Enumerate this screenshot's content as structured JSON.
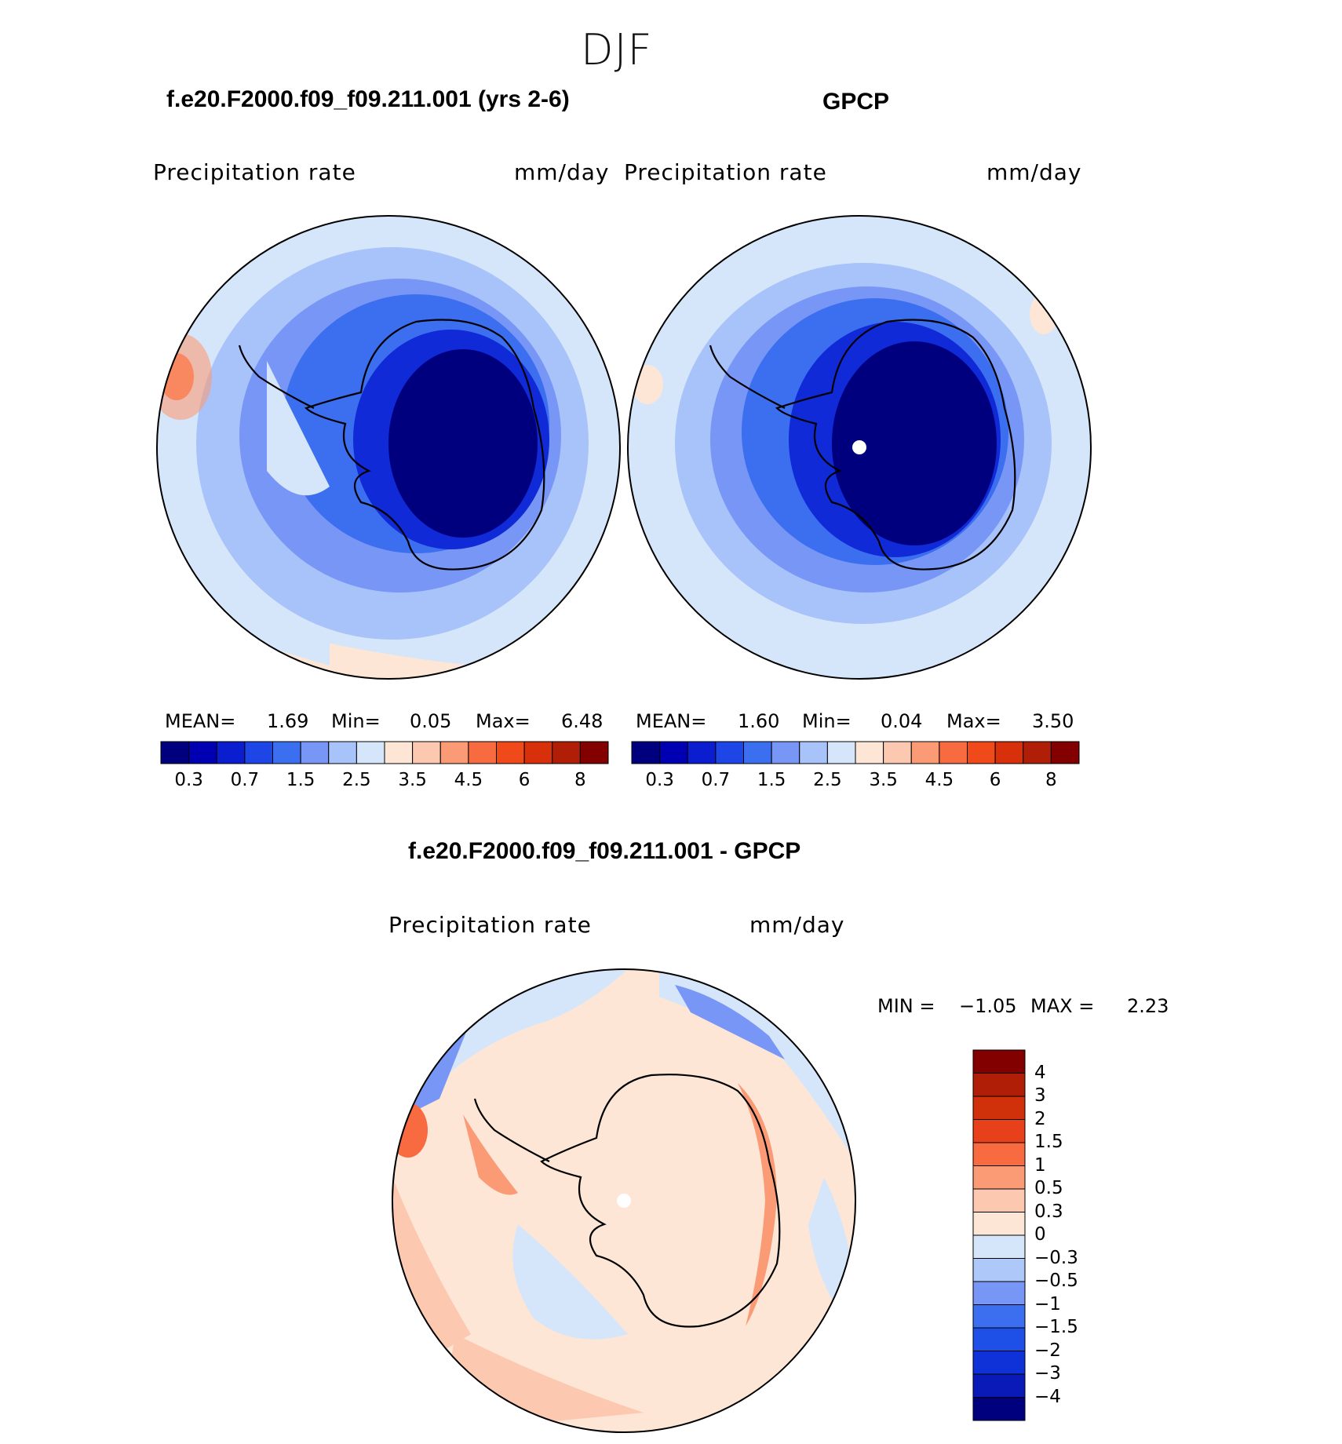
{
  "figure": {
    "season_title": "DJF",
    "bottom_title": "f.e20.F2000.f09_f09.211.001 - GPCP"
  },
  "panels": [
    {
      "id": "model",
      "title": "f.e20.F2000.f09_f09.211.001 (yrs 2-6)",
      "variable": "Precipitation  rate",
      "units": "mm/day",
      "stats": {
        "mean_label": "MEAN=",
        "mean": "1.69",
        "min_label": "Min=",
        "min": "0.05",
        "max_label": "Max=",
        "max": "6.48"
      }
    },
    {
      "id": "obs",
      "title": "GPCP",
      "variable": "Precipitation  rate",
      "units": "mm/day",
      "stats": {
        "mean_label": "MEAN=",
        "mean": "1.60",
        "min_label": "Min=",
        "min": "0.04",
        "max_label": "Max=",
        "max": "3.50"
      }
    },
    {
      "id": "diff",
      "variable": "Precipitation  rate",
      "units": "mm/day",
      "stats": {
        "min_label": "MIN =",
        "min": "−1.05",
        "max_label": "MAX =",
        "max": "2.23"
      }
    }
  ],
  "colorbar_abs": {
    "colors": [
      "#00007f",
      "#0000b2",
      "#0a1ecf",
      "#1e46e6",
      "#3c6ef0",
      "#7896f5",
      "#a8c2fa",
      "#d6e6fa",
      "#fde6d6",
      "#fcc8b0",
      "#fa9b76",
      "#f86a40",
      "#f04a1a",
      "#d8300a",
      "#b01e08",
      "#820000"
    ],
    "tick_labels": [
      "0.3",
      "0.7",
      "1.5",
      "2.5",
      "3.5",
      "4.5",
      "6",
      "8"
    ],
    "tick_positions": [
      1,
      3,
      5,
      7,
      9,
      11,
      13,
      15
    ]
  },
  "colorbar_diff": {
    "colors": [
      "#00007f",
      "#0a1ab8",
      "#0f32d8",
      "#1e50e8",
      "#3c6ef0",
      "#7896f5",
      "#aec8fa",
      "#d6e6fa",
      "#fde6d6",
      "#fcc8b0",
      "#fa9b76",
      "#f86a40",
      "#e8401a",
      "#d0300a",
      "#b01e08",
      "#820000"
    ],
    "tick_labels": [
      "4",
      "3",
      "2",
      "1.5",
      "1",
      "0.5",
      "0.3",
      "0",
      "−0.3",
      "−0.5",
      "−1",
      "−1.5",
      "−2",
      "−3",
      "−4"
    ]
  },
  "map_colors": {
    "dark_navy": "#00007f",
    "deep_blue": "#0f2ad6",
    "blue": "#3c6ef0",
    "mid_blue": "#7896f5",
    "light_blue": "#a8c2fa",
    "pale_blue": "#d6e6fa",
    "pale_orange": "#fde6d6",
    "light_orange": "#fcc8b0",
    "orange": "#fa9b76",
    "red_orange": "#f86a40",
    "red": "#d8300a"
  }
}
